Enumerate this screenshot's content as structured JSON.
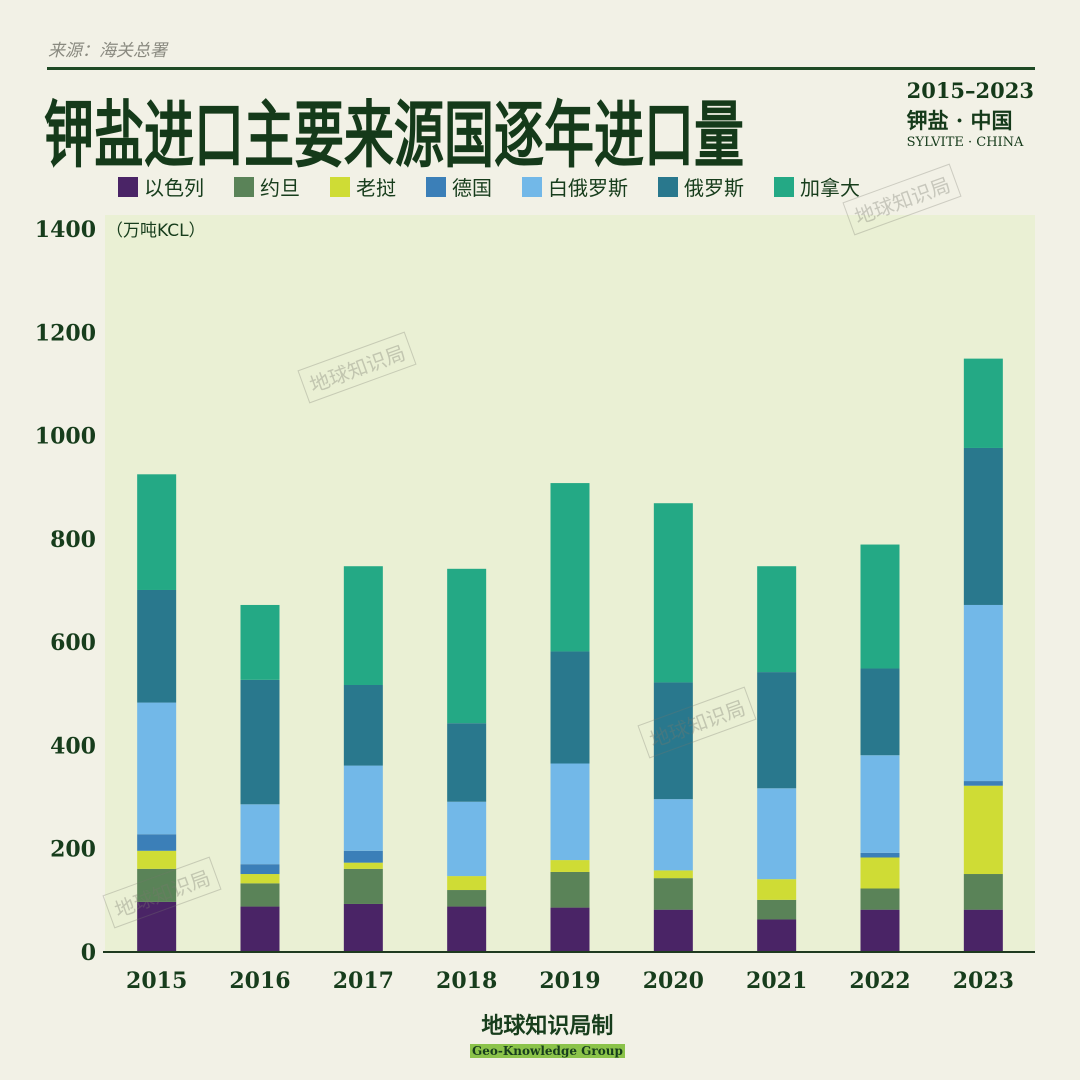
{
  "source": "来源：海关总署",
  "title": "钾盐进口主要来源国逐年进口量",
  "side": {
    "years": "2015–2023",
    "cn": "钾盐 · 中国",
    "en": "SYLVITE · CHINA"
  },
  "credit": {
    "cn": "地球知识局制",
    "en": "Geo-Knowledge Group"
  },
  "watermark": "地球知识局",
  "chart_data": {
    "type": "bar",
    "stacked": true,
    "categories": [
      "2015",
      "2016",
      "2017",
      "2018",
      "2019",
      "2020",
      "2021",
      "2022",
      "2023"
    ],
    "ylabel": "（万吨KCL）",
    "ylim": [
      0,
      1400
    ],
    "yticks": [
      "0",
      "200",
      "400",
      "600",
      "800",
      "1000",
      "1200",
      "1400"
    ],
    "grid": false,
    "legend_position": "top",
    "series": [
      {
        "name": "以色列",
        "color": "#4a2466",
        "values": [
          97,
          88,
          93,
          88,
          86,
          82,
          63,
          82,
          82
        ]
      },
      {
        "name": "约旦",
        "color": "#5a8358",
        "values": [
          64,
          45,
          68,
          32,
          69,
          61,
          38,
          41,
          69
        ]
      },
      {
        "name": "老挝",
        "color": "#cfdc35",
        "values": [
          35,
          18,
          12,
          27,
          23,
          15,
          40,
          60,
          171
        ]
      },
      {
        "name": "德国",
        "color": "#3b7fb8",
        "values": [
          32,
          19,
          23,
          0,
          0,
          0,
          0,
          9,
          9
        ]
      },
      {
        "name": "白俄罗斯",
        "color": "#72b8e8",
        "values": [
          255,
          116,
          165,
          144,
          187,
          138,
          176,
          189,
          341
        ]
      },
      {
        "name": "俄罗斯",
        "color": "#29788d",
        "values": [
          218,
          241,
          156,
          152,
          217,
          226,
          225,
          168,
          304
        ]
      },
      {
        "name": "加拿大",
        "color": "#24a985",
        "values": [
          224,
          145,
          230,
          299,
          326,
          347,
          205,
          240,
          173
        ]
      }
    ]
  }
}
